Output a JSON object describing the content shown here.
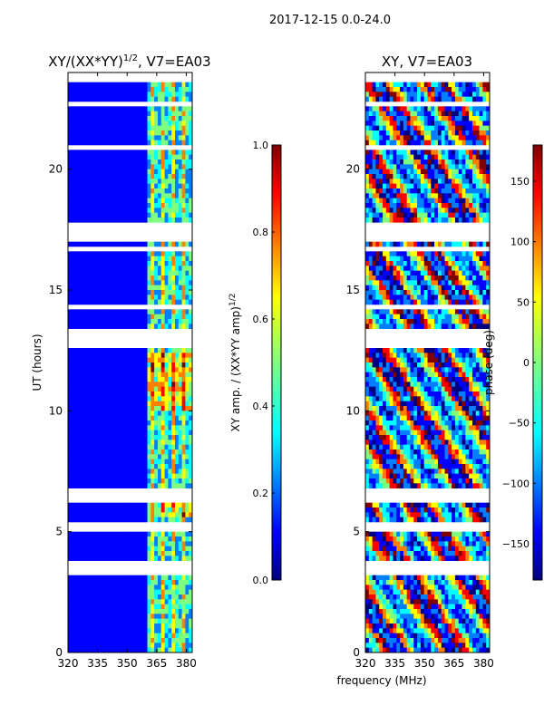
{
  "suptitle": "2017-12-15 0.0-24.0",
  "xlabel_shared": "frequency (MHz)",
  "chart_data": [
    {
      "type": "heatmap",
      "title": "XY/(XX*YY)^(1/2), V7=EA03",
      "title_main": "XY/(XX*YY)",
      "title_sup": "1/2",
      "title_tail": ", V7=EA03",
      "xlabel": "frequency (MHz)",
      "ylabel": "UT (hours)",
      "xlim": [
        320,
        383
      ],
      "ylim": [
        0,
        24
      ],
      "xticks": [
        320,
        335,
        350,
        365,
        380
      ],
      "yticks": [
        0,
        5,
        10,
        15,
        20
      ],
      "colormap": "jet",
      "colorbar": {
        "label_main": "XY amp. / (XX*YY amp)",
        "label_sup": "1/2",
        "range": [
          0.0,
          1.0
        ],
        "ticks": [
          "0.0",
          "0.2",
          "0.4",
          "0.6",
          "0.8",
          "1.0"
        ]
      }
    },
    {
      "type": "heatmap",
      "title": "XY, V7=EA03",
      "xlabel": "frequency (MHz)",
      "ylabel": "",
      "xlim": [
        320,
        383
      ],
      "ylim": [
        0,
        24
      ],
      "xticks": [
        320,
        335,
        350,
        365,
        380
      ],
      "yticks": [
        0,
        5,
        10,
        15,
        20
      ],
      "colormap": "jet",
      "colorbar": {
        "label": "phase (deg)",
        "range": [
          -180,
          180
        ],
        "ticks": [
          "−150",
          "−100",
          "−50",
          "0",
          "50",
          "100",
          "150"
        ]
      }
    }
  ],
  "colors": {
    "jet": [
      "#00007f",
      "#0000ff",
      "#007fff",
      "#00ffff",
      "#7fff7f",
      "#ffff00",
      "#ff7f00",
      "#ff0000",
      "#7f0000"
    ],
    "gap": "#ffffff"
  }
}
